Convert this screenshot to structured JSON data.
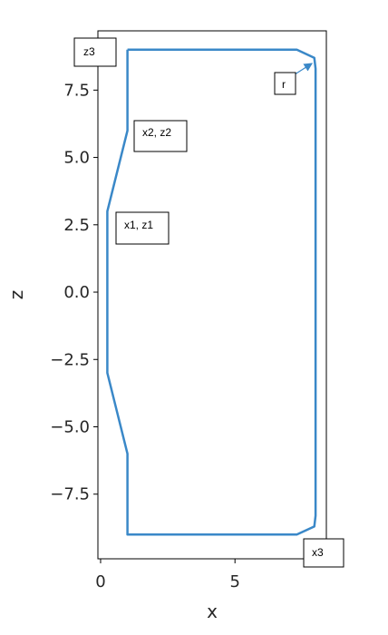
{
  "chart_data": {
    "type": "line",
    "title": "",
    "xlabel": "x",
    "ylabel": "z",
    "xlim": [
      -0.1,
      8.4
    ],
    "ylim": [
      -9.9,
      9.7
    ],
    "xticks": [
      0,
      5
    ],
    "xtick_labels": [
      "0",
      "5"
    ],
    "yticks": [
      7.5,
      5.0,
      2.5,
      0.0,
      -2.5,
      -5.0,
      -7.5
    ],
    "ytick_labels": [
      "7.5",
      "5.0",
      "2.5",
      "0.0",
      "−2.5",
      "−5.0",
      "−7.5"
    ],
    "grid": false,
    "line_color": "#3a88c8",
    "series": [
      {
        "x": [
          1.0,
          7.3,
          7.95,
          8.0,
          8.0,
          7.95,
          7.3,
          1.0,
          1.0,
          0.25,
          0.25,
          1.0,
          1.0
        ],
        "y": [
          9.0,
          9.0,
          8.7,
          8.3,
          -8.3,
          -8.7,
          -9.0,
          -9.0,
          -6.0,
          -3.0,
          3.0,
          6.0,
          9.0
        ]
      }
    ],
    "annotations": [
      {
        "text": "z3",
        "anchor": "top-left outside"
      },
      {
        "text": "r",
        "anchor": "top-right corner",
        "arrow_to": [
          7.95,
          8.6
        ]
      },
      {
        "text": "x2, z2",
        "anchor": "upper left edge"
      },
      {
        "text": "x1, z1",
        "anchor": "left middle"
      },
      {
        "text": "x3",
        "anchor": "bottom-right outside"
      }
    ]
  }
}
